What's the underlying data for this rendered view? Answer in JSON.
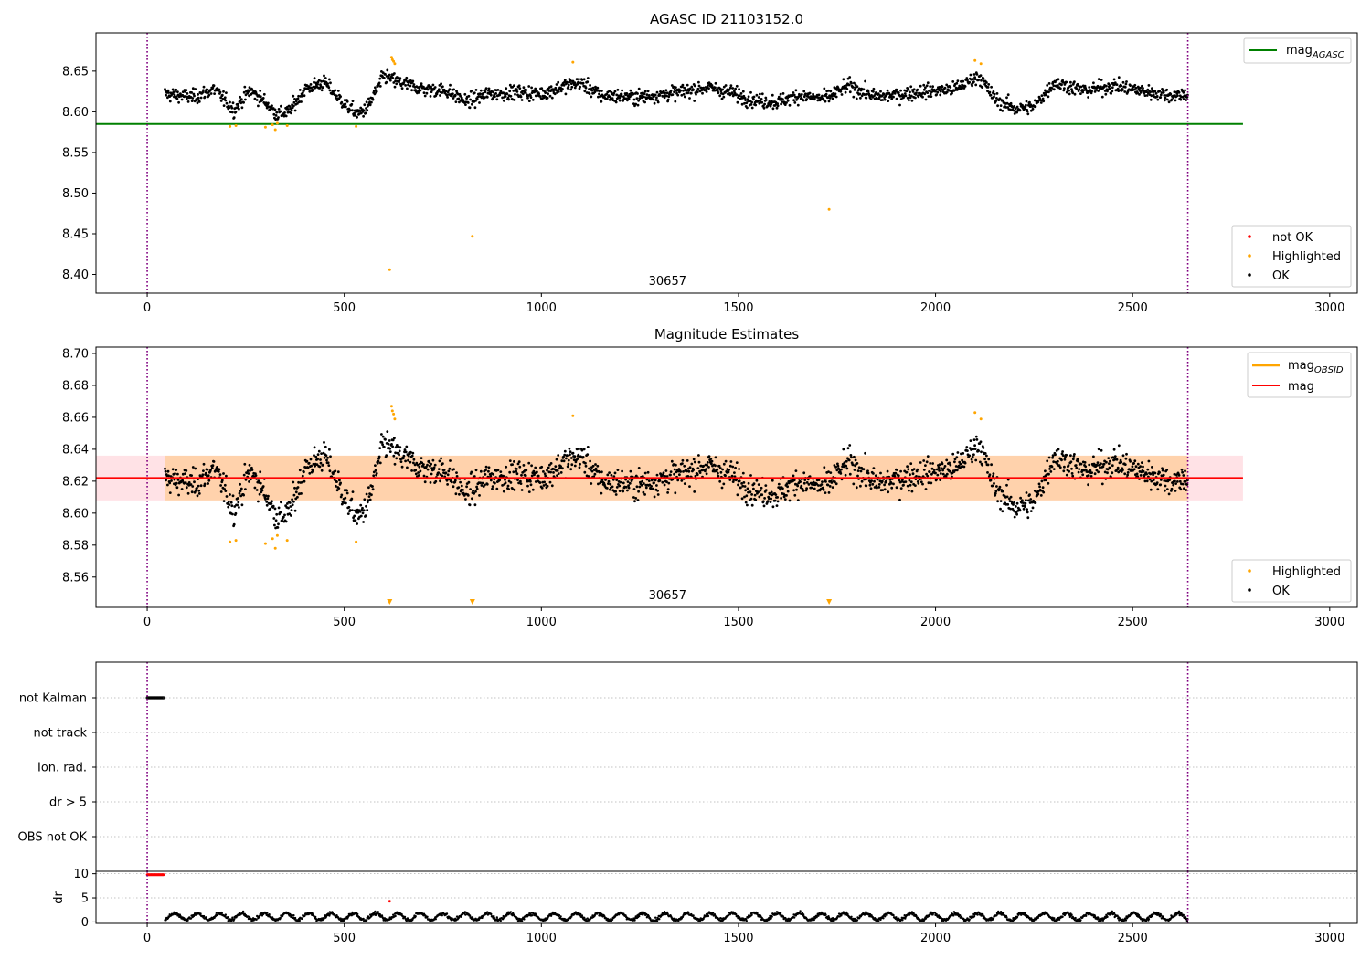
{
  "chart_data": [
    {
      "type": "scatter",
      "title": "AGASC ID 21103152.0",
      "xlim": [
        -130,
        3070
      ],
      "ylim": [
        8.377,
        8.697
      ],
      "xticks": [
        0,
        500,
        1000,
        1500,
        2000,
        2500,
        3000
      ],
      "yticks": [
        8.4,
        8.45,
        8.5,
        8.55,
        8.6,
        8.65
      ],
      "vlines": [
        0,
        2640
      ],
      "obsid_label": {
        "text": "30657",
        "x": 1320
      },
      "hline": {
        "name": "mag_AGASC",
        "y": 8.585,
        "x_range": [
          -130,
          2780
        ],
        "color": "#008000"
      },
      "series_style": {
        "OK": "#000000",
        "Highlighted": "#ffa500",
        "not OK": "#ff0000"
      },
      "data_model": {
        "x_range": [
          45,
          2640
        ],
        "baseline_y": 8.622,
        "noise_sd": 0.0062
      },
      "highlighted_points": [
        [
          210,
          8.582
        ],
        [
          225,
          8.583
        ],
        [
          300,
          8.581
        ],
        [
          318,
          8.584
        ],
        [
          325,
          8.578
        ],
        [
          330,
          8.586
        ],
        [
          355,
          8.583
        ],
        [
          530,
          8.582
        ],
        [
          615,
          8.406
        ],
        [
          620,
          8.667
        ],
        [
          622,
          8.664
        ],
        [
          625,
          8.662
        ],
        [
          628,
          8.659
        ],
        [
          825,
          8.447
        ],
        [
          1080,
          8.661
        ],
        [
          1730,
          8.48
        ],
        [
          2100,
          8.663
        ],
        [
          2115,
          8.659
        ]
      ],
      "legend_lines": [
        "mag_AGASC"
      ],
      "legend_points": [
        "not OK",
        "Highlighted",
        "OK"
      ]
    },
    {
      "type": "scatter",
      "title": "Magnitude Estimates",
      "xlim": [
        -130,
        3070
      ],
      "ylim": [
        8.541,
        8.704
      ],
      "xticks": [
        0,
        500,
        1000,
        1500,
        2000,
        2500,
        3000
      ],
      "yticks": [
        8.56,
        8.58,
        8.6,
        8.62,
        8.64,
        8.66,
        8.68,
        8.7
      ],
      "vlines": [
        0,
        2640
      ],
      "obsid_label": {
        "text": "30657",
        "x": 1320
      },
      "mag_line": {
        "name": "mag",
        "y": 8.622,
        "x_range": [
          -130,
          2780
        ],
        "color": "#ff0000"
      },
      "mag_band": {
        "y_range": [
          8.608,
          8.636
        ],
        "x_range": [
          -130,
          2780
        ],
        "color": "#ffb6c1"
      },
      "mag_obsid": {
        "name": "mag_OBSID",
        "y": 8.622,
        "y_range": [
          8.608,
          8.636
        ],
        "x_range": [
          45,
          2640
        ],
        "color": "#ffa500"
      },
      "series_style": {
        "OK": "#000000",
        "Highlighted": "#ffa500"
      },
      "out_of_range_markers": [
        615,
        825,
        1730
      ],
      "legend_lines": [
        "mag_OBSID",
        "mag"
      ],
      "legend_points": [
        "Highlighted",
        "OK"
      ]
    },
    {
      "type": "scatter",
      "xlim": [
        -130,
        3070
      ],
      "categories": [
        "not Kalman",
        "not track",
        "Ion. rad.",
        "dr > 5",
        "OBS not OK"
      ],
      "flag_points": {
        "category": "not Kalman",
        "x_range": [
          0,
          42
        ]
      },
      "vlines": [
        0,
        2640
      ]
    },
    {
      "type": "scatter",
      "xlim": [
        -130,
        3070
      ],
      "ylim": [
        -0.3,
        10.5
      ],
      "yticks": [
        0,
        5,
        10
      ],
      "ylabel": "dr",
      "xticks": [
        0,
        500,
        1000,
        1500,
        2000,
        2500,
        3000
      ],
      "red_points": [
        [
          0,
          9.8
        ],
        [
          42,
          9.8
        ],
        [
          615,
          4.3
        ]
      ],
      "data_model": {
        "x_range": [
          45,
          2640
        ],
        "baseline_y": 1.1,
        "amplitude": 0.7
      },
      "vlines": [
        0,
        2640
      ]
    }
  ],
  "legend_labels": {
    "mag_agasc_base": "mag",
    "mag_agasc_sub": "AGASC",
    "mag_obsid_base": "mag",
    "mag_obsid_sub": "OBSID",
    "mag": "mag",
    "not_ok": "not OK",
    "highlighted": "Highlighted",
    "ok": "OK"
  }
}
